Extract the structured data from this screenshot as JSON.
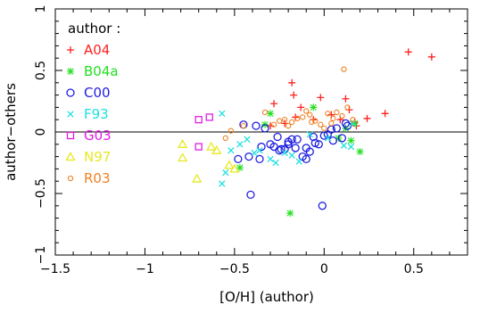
{
  "chart_data": {
    "type": "scatter",
    "xlabel": "[O/H] (author)",
    "ylabel": "author−others",
    "xlim": [
      -1.5,
      0.8
    ],
    "ylim": [
      -1,
      1
    ],
    "x_ticks": [
      -1.5,
      -1,
      -0.5,
      0,
      0.5
    ],
    "x_tick_labels": [
      "−1.5",
      "−1",
      "−0.5",
      "0",
      "0.5"
    ],
    "y_ticks": [
      -1,
      -0.5,
      0,
      0.5,
      1
    ],
    "y_tick_labels": [
      "−1",
      "−0.5",
      "0",
      "0.5",
      "1"
    ],
    "legend_title": "author :",
    "legend_position": "top-left",
    "zero_line": true,
    "series": [
      {
        "name": "A04",
        "marker": "plus",
        "color": "#ff2020",
        "points": [
          [
            0.47,
            0.65
          ],
          [
            0.6,
            0.61
          ],
          [
            -0.18,
            0.4
          ],
          [
            -0.17,
            0.3
          ],
          [
            -0.02,
            0.28
          ],
          [
            0.12,
            0.27
          ],
          [
            0.34,
            0.15
          ],
          [
            -0.28,
            0.23
          ],
          [
            -0.13,
            0.2
          ],
          [
            0.14,
            0.18
          ],
          [
            0.04,
            0.14
          ],
          [
            0.24,
            0.11
          ],
          [
            -0.06,
            0.1
          ],
          [
            0.09,
            0.1
          ],
          [
            0.17,
            0.08
          ],
          [
            -0.16,
            0.12
          ],
          [
            -0.3,
            0.05
          ],
          [
            0.18,
            0.05
          ],
          [
            -0.22,
            0.07
          ]
        ]
      },
      {
        "name": "B04a",
        "marker": "star",
        "color": "#20e020",
        "points": [
          [
            -0.19,
            -0.66
          ],
          [
            -0.47,
            -0.29
          ],
          [
            0.2,
            -0.16
          ],
          [
            0.15,
            -0.07
          ],
          [
            0.08,
            -0.05
          ],
          [
            -0.33,
            0.06
          ],
          [
            -0.06,
            0.2
          ],
          [
            0.17,
            0.07
          ],
          [
            -0.3,
            0.15
          ],
          [
            0.12,
            0.03
          ]
        ]
      },
      {
        "name": "C00",
        "marker": "circle",
        "color": "#2020e0",
        "points": [
          [
            -0.01,
            -0.6
          ],
          [
            -0.41,
            -0.51
          ],
          [
            -0.35,
            -0.12
          ],
          [
            -0.3,
            -0.1
          ],
          [
            -0.25,
            -0.15
          ],
          [
            -0.2,
            -0.08
          ],
          [
            -0.15,
            -0.06
          ],
          [
            -0.1,
            -0.13
          ],
          [
            -0.05,
            -0.09
          ],
          [
            0,
            -0.03
          ],
          [
            0.05,
            -0.07
          ],
          [
            0.1,
            -0.05
          ],
          [
            0.12,
            0.07
          ],
          [
            -0.45,
            0.06
          ],
          [
            -0.38,
            0.05
          ],
          [
            -0.33,
            0.03
          ],
          [
            -0.28,
            -0.12
          ],
          [
            -0.22,
            -0.14
          ],
          [
            -0.18,
            -0.06
          ],
          [
            -0.12,
            -0.2
          ],
          [
            -0.08,
            -0.16
          ],
          [
            -0.03,
            -0.1
          ],
          [
            0.02,
            -0.02
          ],
          [
            0.07,
            0.03
          ],
          [
            0.13,
            0.05
          ],
          [
            -0.42,
            -0.2
          ],
          [
            -0.36,
            -0.22
          ],
          [
            -0.26,
            -0.04
          ],
          [
            -0.16,
            -0.13
          ],
          [
            -0.06,
            -0.04
          ],
          [
            0.04,
            0.02
          ],
          [
            -0.48,
            -0.22
          ],
          [
            -0.2,
            -0.1
          ],
          [
            -0.1,
            -0.22
          ],
          [
            -0.24,
            -0.14
          ]
        ]
      },
      {
        "name": "F93",
        "marker": "cross",
        "color": "#20e0e0",
        "points": [
          [
            -0.57,
            0.15
          ],
          [
            -0.55,
            -0.33
          ],
          [
            -0.57,
            -0.42
          ],
          [
            -0.52,
            -0.15
          ],
          [
            -0.47,
            -0.1
          ],
          [
            -0.43,
            -0.06
          ],
          [
            -0.39,
            -0.17
          ],
          [
            -0.3,
            -0.22
          ],
          [
            -0.27,
            -0.25
          ],
          [
            -0.22,
            -0.17
          ],
          [
            -0.18,
            -0.19
          ],
          [
            -0.14,
            -0.24
          ],
          [
            -0.36,
            -0.15
          ],
          [
            0.11,
            -0.11
          ],
          [
            0.15,
            -0.12
          ],
          [
            0.02,
            -0.05
          ],
          [
            -0.08,
            -0.02
          ],
          [
            0.16,
            0.07
          ]
        ]
      },
      {
        "name": "G03",
        "marker": "square",
        "color": "#e020e0",
        "points": [
          [
            -0.7,
            0.1
          ],
          [
            -0.7,
            -0.12
          ],
          [
            -0.64,
            0.12
          ]
        ]
      },
      {
        "name": "N97",
        "marker": "triangle",
        "color": "#e8e820",
        "points": [
          [
            -0.79,
            -0.1
          ],
          [
            -0.79,
            -0.21
          ],
          [
            -0.71,
            -0.38
          ],
          [
            -0.63,
            -0.12
          ],
          [
            -0.6,
            -0.15
          ],
          [
            -0.53,
            -0.27
          ],
          [
            -0.5,
            -0.3
          ]
        ]
      },
      {
        "name": "R03",
        "marker": "smallcircle",
        "color": "#f08020",
        "points": [
          [
            0.11,
            0.51
          ],
          [
            -0.33,
            0.16
          ],
          [
            -0.25,
            0.09
          ],
          [
            -0.2,
            0.05
          ],
          [
            -0.15,
            0.11
          ],
          [
            -0.12,
            0.12
          ],
          [
            -0.08,
            0.14
          ],
          [
            -0.05,
            0.09
          ],
          [
            -0.02,
            0.06
          ],
          [
            0.02,
            0.15
          ],
          [
            0.05,
            0.11
          ],
          [
            0.07,
            0.16
          ],
          [
            0.1,
            0.13
          ],
          [
            0.13,
            0.2
          ],
          [
            0.16,
            0.1
          ],
          [
            -0.18,
            0.08
          ],
          [
            -0.1,
            0.17
          ],
          [
            0,
            0.03
          ],
          [
            -0.22,
            0.1
          ],
          [
            -0.28,
            0.06
          ],
          [
            -0.45,
            0.05
          ],
          [
            -0.52,
            0.01
          ],
          [
            -0.55,
            -0.05
          ],
          [
            0.04,
            0.07
          ],
          [
            -0.07,
            0.08
          ]
        ]
      }
    ]
  }
}
